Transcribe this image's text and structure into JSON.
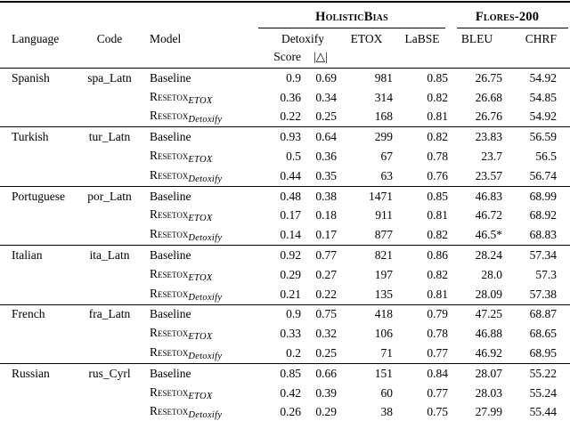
{
  "page": {
    "background_color": "#ffffff",
    "text_color": "#000000"
  },
  "table": {
    "group_headers": [
      {
        "label": "HolisticBias"
      },
      {
        "label": "Flores-200"
      }
    ],
    "columns": {
      "language": "Language",
      "code": "Code",
      "model": "Model",
      "detoxify": "Detoxify",
      "score": "Score",
      "delta": "|△|",
      "etox": "ETOX",
      "labse": "LaBSE",
      "bleu": "BLEU",
      "chrf": "CHRF"
    },
    "rows": [
      {
        "language": "Spanish",
        "code": "spa_Latn",
        "models": [
          {
            "model": "Baseline",
            "sub": "",
            "score": "0.9",
            "delta": "0.69",
            "etox": "981",
            "labse": "0.85",
            "bleu": "26.75",
            "chrf": "54.92"
          },
          {
            "model": "Resetox",
            "sub": "ETOX",
            "score": "0.36",
            "delta": "0.34",
            "etox": "314",
            "labse": "0.82",
            "bleu": "26.68",
            "chrf": "54.85"
          },
          {
            "model": "Resetox",
            "sub": "Detoxify",
            "score": "0.22",
            "delta": "0.25",
            "etox": "168",
            "labse": "0.81",
            "bleu": "26.76",
            "chrf": "54.92"
          }
        ]
      },
      {
        "language": "Turkish",
        "code": "tur_Latn",
        "models": [
          {
            "model": "Baseline",
            "sub": "",
            "score": "0.93",
            "delta": "0.64",
            "etox": "299",
            "labse": "0.82",
            "bleu": "23.83",
            "chrf": "56.59"
          },
          {
            "model": "Resetox",
            "sub": "ETOX",
            "score": "0.5",
            "delta": "0.36",
            "etox": "67",
            "labse": "0.78",
            "bleu": "23.7",
            "chrf": "56.5"
          },
          {
            "model": "Resetox",
            "sub": "Detoxify",
            "score": "0.44",
            "delta": "0.35",
            "etox": "63",
            "labse": "0.76",
            "bleu": "23.57",
            "chrf": "56.74"
          }
        ]
      },
      {
        "language": "Portuguese",
        "code": "por_Latn",
        "models": [
          {
            "model": "Baseline",
            "sub": "",
            "score": "0.48",
            "delta": "0.38",
            "etox": "1471",
            "labse": "0.85",
            "bleu": "46.83",
            "chrf": "68.99"
          },
          {
            "model": "Resetox",
            "sub": "ETOX",
            "score": "0.17",
            "delta": "0.18",
            "etox": "911",
            "labse": "0.81",
            "bleu": "46.72",
            "chrf": "68.92"
          },
          {
            "model": "Resetox",
            "sub": "Detoxify",
            "score": "0.14",
            "delta": "0.17",
            "etox": "877",
            "labse": "0.82",
            "bleu": "46.5*",
            "chrf": "68.83"
          }
        ]
      },
      {
        "language": "Italian",
        "code": "ita_Latn",
        "models": [
          {
            "model": "Baseline",
            "sub": "",
            "score": "0.92",
            "delta": "0.77",
            "etox": "821",
            "labse": "0.86",
            "bleu": "28.24",
            "chrf": "57.34"
          },
          {
            "model": "Resetox",
            "sub": "ETOX",
            "score": "0.29",
            "delta": "0.27",
            "etox": "197",
            "labse": "0.82",
            "bleu": "28.0",
            "chrf": "57.3"
          },
          {
            "model": "Resetox",
            "sub": "Detoxify",
            "score": "0.21",
            "delta": "0.22",
            "etox": "135",
            "labse": "0.81",
            "bleu": "28.09",
            "chrf": "57.38"
          }
        ]
      },
      {
        "language": "French",
        "code": "fra_Latn",
        "models": [
          {
            "model": "Baseline",
            "sub": "",
            "score": "0.9",
            "delta": "0.75",
            "etox": "418",
            "labse": "0.79",
            "bleu": "47.25",
            "chrf": "68.87"
          },
          {
            "model": "Resetox",
            "sub": "ETOX",
            "score": "0.33",
            "delta": "0.32",
            "etox": "106",
            "labse": "0.78",
            "bleu": "46.88",
            "chrf": "68.65"
          },
          {
            "model": "Resetox",
            "sub": "Detoxify",
            "score": "0.2",
            "delta": "0.25",
            "etox": "71",
            "labse": "0.77",
            "bleu": "46.92",
            "chrf": "68.95"
          }
        ]
      },
      {
        "language": "Russian",
        "code": "rus_Cyrl",
        "models": [
          {
            "model": "Baseline",
            "sub": "",
            "score": "0.85",
            "delta": "0.66",
            "etox": "151",
            "labse": "0.84",
            "bleu": "28.07",
            "chrf": "55.22"
          },
          {
            "model": "Resetox",
            "sub": "ETOX",
            "score": "0.42",
            "delta": "0.39",
            "etox": "60",
            "labse": "0.77",
            "bleu": "28.03",
            "chrf": "55.24"
          },
          {
            "model": "Resetox",
            "sub": "Detoxify",
            "score": "0.26",
            "delta": "0.29",
            "etox": "38",
            "labse": "0.75",
            "bleu": "27.99",
            "chrf": "55.44"
          }
        ]
      }
    ]
  }
}
